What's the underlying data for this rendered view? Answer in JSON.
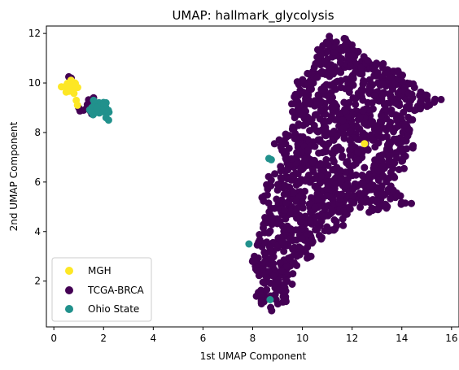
{
  "chart_data": {
    "type": "scatter",
    "title": "UMAP: hallmark_glycolysis",
    "xlabel": "1st UMAP Component",
    "ylabel": "2nd UMAP Component",
    "xlim": [
      -0.3,
      16.3
    ],
    "ylim": [
      0.15,
      12.3
    ],
    "xticks": [
      0,
      2,
      4,
      6,
      8,
      10,
      12,
      14,
      16
    ],
    "yticks": [
      2,
      4,
      6,
      8,
      10,
      12
    ],
    "grid": false,
    "legend": {
      "position": "lower-left",
      "order": [
        "MGH",
        "TCGA-BRCA",
        "Ohio State"
      ]
    },
    "series": [
      {
        "name": "TCGA-BRCA",
        "color": "#440154",
        "clusters": [
          {
            "shape": "polygon",
            "density": 1300,
            "polygon": [
              [
                11.0,
                11.9
              ],
              [
                11.7,
                11.8
              ],
              [
                12.7,
                11.0
              ],
              [
                13.3,
                10.7
              ],
              [
                13.9,
                10.5
              ],
              [
                14.4,
                9.9
              ],
              [
                15.0,
                9.5
              ],
              [
                15.5,
                9.3
              ],
              [
                14.8,
                8.9
              ],
              [
                14.3,
                8.1
              ],
              [
                14.5,
                7.4
              ],
              [
                14.0,
                6.6
              ],
              [
                13.6,
                5.9
              ],
              [
                14.3,
                5.1
              ],
              [
                12.6,
                4.8
              ],
              [
                11.9,
                4.9
              ],
              [
                11.6,
                4.3
              ],
              [
                10.8,
                3.7
              ],
              [
                10.3,
                3.0
              ],
              [
                9.8,
                2.6
              ],
              [
                9.5,
                1.8
              ],
              [
                9.4,
                1.2
              ],
              [
                8.8,
                0.9
              ],
              [
                8.3,
                1.1
              ],
              [
                8.1,
                1.4
              ],
              [
                8.4,
                2.0
              ],
              [
                7.9,
                2.7
              ],
              [
                8.2,
                3.6
              ],
              [
                8.4,
                4.5
              ],
              [
                8.7,
                4.8
              ],
              [
                8.3,
                5.4
              ],
              [
                8.7,
                6.3
              ],
              [
                9.3,
                6.9
              ],
              [
                8.9,
                7.6
              ],
              [
                9.6,
                8.2
              ],
              [
                9.6,
                9.1
              ],
              [
                9.8,
                10.0
              ],
              [
                10.2,
                10.3
              ],
              [
                10.5,
                10.8
              ],
              [
                10.7,
                11.4
              ]
            ]
          },
          {
            "shape": "ellipse",
            "count": 14,
            "center": [
              1.5,
              9.1
            ],
            "spread": [
              0.35,
              0.3
            ]
          },
          {
            "shape": "points",
            "points": [
              [
                0.7,
                10.2
              ],
              [
                0.6,
                10.25
              ],
              [
                1.0,
                9.0
              ],
              [
                1.2,
                8.9
              ],
              [
                1.4,
                9.05
              ],
              [
                1.6,
                9.4
              ]
            ]
          }
        ]
      },
      {
        "name": "MGH",
        "color": "#fde725",
        "clusters": [
          {
            "shape": "ellipse",
            "count": 40,
            "center": [
              0.6,
              9.85
            ],
            "spread": [
              0.25,
              0.25
            ]
          },
          {
            "shape": "points",
            "points": [
              [
                0.9,
                9.3
              ],
              [
                0.95,
                9.1
              ],
              [
                0.7,
                10.1
              ],
              [
                12.5,
                7.55
              ]
            ]
          }
        ]
      },
      {
        "name": "Ohio State",
        "color": "#21918c",
        "clusters": [
          {
            "shape": "ellipse",
            "count": 50,
            "center": [
              1.8,
              8.95
            ],
            "spread": [
              0.3,
              0.25
            ]
          },
          {
            "shape": "points",
            "points": [
              [
                2.1,
                8.6
              ],
              [
                2.2,
                8.5
              ],
              [
                1.6,
                9.3
              ],
              [
                8.65,
                6.95
              ],
              [
                8.75,
                6.9
              ],
              [
                7.85,
                3.5
              ],
              [
                8.7,
                1.25
              ]
            ]
          }
        ]
      }
    ],
    "render_order": [
      "TCGA-BRCA",
      "MGH",
      "Ohio State"
    ]
  }
}
